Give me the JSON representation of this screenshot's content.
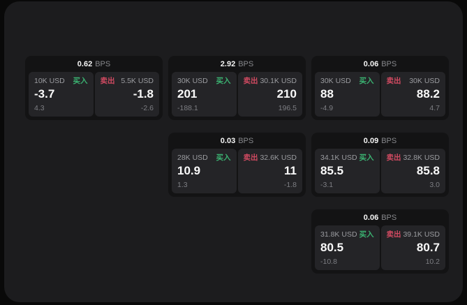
{
  "labels": {
    "bps": "BPS",
    "buy": "买入",
    "sell": "卖出"
  },
  "colors": {
    "page_background": "#090909",
    "panel_background": "#1c1c1e",
    "card_background": "#131314",
    "tile_background": "#242427",
    "buy_green": "#3bb271",
    "sell_red": "#d04a61"
  },
  "cards": [
    {
      "bps": "0.62",
      "buy": {
        "size": "10K USD",
        "price": "-3.7",
        "delta": "4.3"
      },
      "sell": {
        "size": "5.5K USD",
        "price": "-1.8",
        "delta": "-2.6"
      }
    },
    {
      "bps": "2.92",
      "buy": {
        "size": "30K USD",
        "price": "201",
        "delta": "-188.1"
      },
      "sell": {
        "size": "30.1K USD",
        "price": "210",
        "delta": "196.5"
      }
    },
    {
      "bps": "0.06",
      "buy": {
        "size": "30K USD",
        "price": "88",
        "delta": "-4.9"
      },
      "sell": {
        "size": "30K USD",
        "price": "88.2",
        "delta": "4.7"
      }
    },
    {
      "bps": "0.03",
      "buy": {
        "size": "28K USD",
        "price": "10.9",
        "delta": "1.3"
      },
      "sell": {
        "size": "32.6K USD",
        "price": "11",
        "delta": "-1.8"
      }
    },
    {
      "bps": "0.09",
      "buy": {
        "size": "34.1K USD",
        "price": "85.5",
        "delta": "-3.1"
      },
      "sell": {
        "size": "32.8K USD",
        "price": "85.8",
        "delta": "3.0"
      }
    },
    {
      "bps": "0.06",
      "buy": {
        "size": "31.8K USD",
        "price": "80.5",
        "delta": "-10.8"
      },
      "sell": {
        "size": "39.1K USD",
        "price": "80.7",
        "delta": "10.2"
      }
    }
  ]
}
